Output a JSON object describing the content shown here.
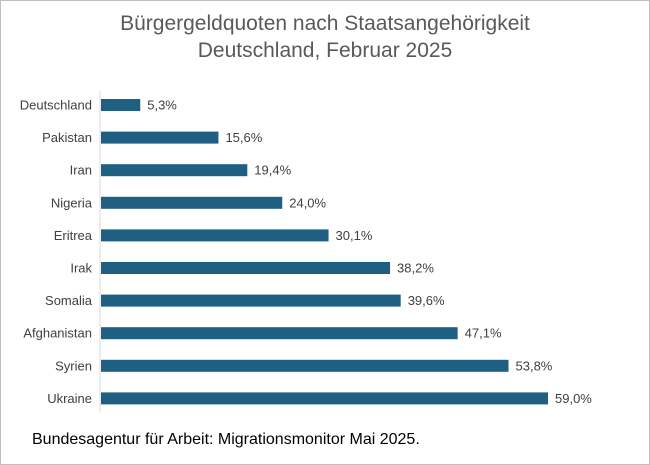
{
  "chart_data": {
    "type": "bar",
    "orientation": "horizontal",
    "title": "Bürgergeldquoten nach Staatsangehörigkeit",
    "subtitle": "Deutschland, Februar 2025",
    "categories": [
      "Deutschland",
      "Pakistan",
      "Iran",
      "Nigeria",
      "Eritrea",
      "Irak",
      "Somalia",
      "Afghanistan",
      "Syrien",
      "Ukraine"
    ],
    "values": [
      5.3,
      15.6,
      19.4,
      24.0,
      30.1,
      38.2,
      39.6,
      47.1,
      53.8,
      59.0
    ],
    "value_labels": [
      "5,3%",
      "15,6%",
      "19,4%",
      "24,0%",
      "30,1%",
      "38,2%",
      "39,6%",
      "47,1%",
      "53,8%",
      "59,0%"
    ],
    "xlim": [
      0,
      59
    ],
    "grid": false,
    "legend": "none",
    "bar_color": "#1f5f82",
    "source": "Bundesagentur für Arbeit: Migrationsmonitor Mai 2025."
  }
}
